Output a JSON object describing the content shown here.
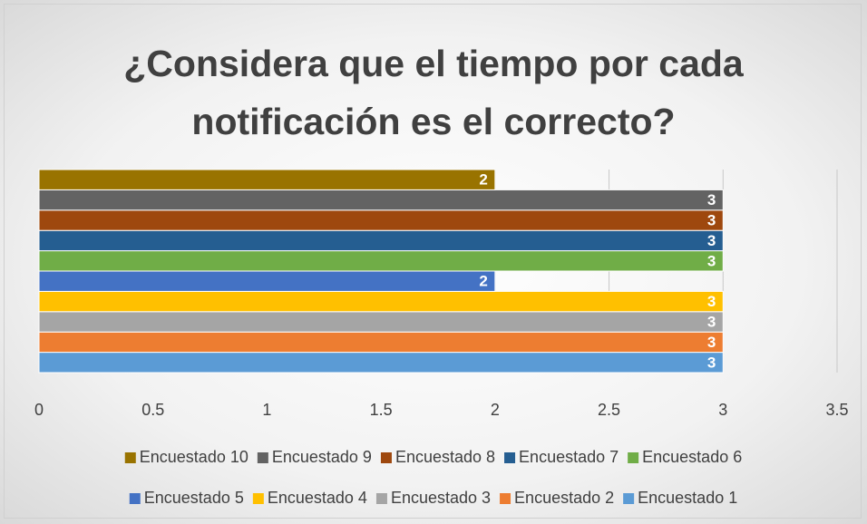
{
  "chart_data": {
    "type": "bar",
    "orientation": "horizontal",
    "title": "¿Considera que el tiempo por cada notificación es el correcto?",
    "series": [
      {
        "name": "Encuestado 1",
        "color": "#5b9bd5",
        "values": [
          3
        ]
      },
      {
        "name": "Encuestado 2",
        "color": "#ed7d31",
        "values": [
          3
        ]
      },
      {
        "name": "Encuestado 3",
        "color": "#a5a5a5",
        "values": [
          3
        ]
      },
      {
        "name": "Encuestado 4",
        "color": "#ffc000",
        "values": [
          3
        ]
      },
      {
        "name": "Encuestado 5",
        "color": "#4472c4",
        "values": [
          2
        ]
      },
      {
        "name": "Encuestado 6",
        "color": "#70ad47",
        "values": [
          3
        ]
      },
      {
        "name": "Encuestado 7",
        "color": "#255e91",
        "values": [
          3
        ]
      },
      {
        "name": "Encuestado 8",
        "color": "#9e480e",
        "values": [
          3
        ]
      },
      {
        "name": "Encuestado 9",
        "color": "#636363",
        "values": [
          3
        ]
      },
      {
        "name": "Encuestado 10",
        "color": "#997300",
        "values": [
          2
        ]
      }
    ],
    "xlim": [
      0,
      3.5
    ],
    "xticks": [
      0,
      0.5,
      1,
      1.5,
      2,
      2.5,
      3,
      3.5
    ],
    "grid": true,
    "legend": "bottom"
  }
}
